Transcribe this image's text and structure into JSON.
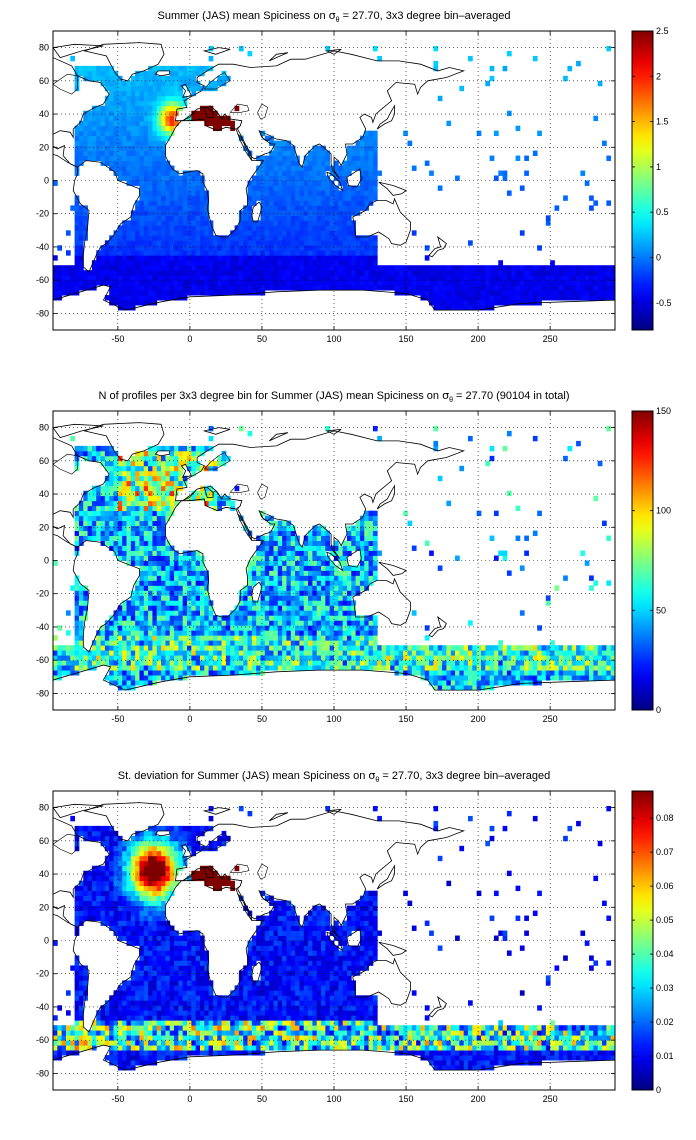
{
  "chart_data": [
    {
      "type": "heatmap",
      "title_pre": "Summer (JAS) mean Spiciness on ",
      "title_sym": "σ",
      "title_sub": "θ",
      "title_post": " = 27.70, 3x3 degree bin–averaged",
      "xlim": [
        -95,
        295
      ],
      "ylim": [
        -90,
        90
      ],
      "xticks": [
        "-50",
        "0",
        "50",
        "100",
        "150",
        "200",
        "250"
      ],
      "xtick_values": [
        -50,
        0,
        50,
        100,
        150,
        200,
        250
      ],
      "yticks": [
        "80",
        "60",
        "40",
        "20",
        "0",
        "-20",
        "-40",
        "-60",
        "-80"
      ],
      "ytick_values": [
        80,
        60,
        40,
        20,
        0,
        -20,
        -40,
        -60,
        -80
      ],
      "grid": true,
      "colormap": "jet",
      "colorbar": {
        "min": -0.8,
        "max": 2.5,
        "ticks": [
          "2.5",
          "2",
          "1.5",
          "1",
          "0.5",
          "0",
          "-0.5"
        ],
        "tick_values": [
          2.5,
          2,
          1.5,
          1,
          0.5,
          0,
          -0.5
        ]
      },
      "field": "mean"
    },
    {
      "type": "heatmap",
      "title_pre": "N of profiles per 3x3 degree bin for Summer (JAS) mean Spiciness on ",
      "title_sym": "σ",
      "title_sub": "θ",
      "title_post": " = 27.70 (90104 in total)",
      "xlim": [
        -95,
        295
      ],
      "ylim": [
        -90,
        90
      ],
      "xticks": [
        "-50",
        "0",
        "50",
        "100",
        "150",
        "200",
        "250"
      ],
      "xtick_values": [
        -50,
        0,
        50,
        100,
        150,
        200,
        250
      ],
      "yticks": [
        "80",
        "60",
        "40",
        "20",
        "0",
        "-20",
        "-40",
        "-60",
        "-80"
      ],
      "ytick_values": [
        80,
        60,
        40,
        20,
        0,
        -20,
        -40,
        -60,
        -80
      ],
      "grid": true,
      "colormap": "jet",
      "colorbar": {
        "min": 0,
        "max": 150,
        "ticks": [
          "150",
          "100",
          "50",
          "0"
        ],
        "tick_values": [
          150,
          100,
          50,
          0
        ]
      },
      "field": "count"
    },
    {
      "type": "heatmap",
      "title_pre": "St. deviation for Summer (JAS) mean Spiciness on ",
      "title_sym": "σ",
      "title_sub": "θ",
      "title_post": " = 27.70, 3x3 degree bin–averaged",
      "xlim": [
        -95,
        295
      ],
      "ylim": [
        -90,
        90
      ],
      "xticks": [
        "-50",
        "0",
        "50",
        "100",
        "150",
        "200",
        "250"
      ],
      "xtick_values": [
        -50,
        0,
        50,
        100,
        150,
        200,
        250
      ],
      "yticks": [
        "80",
        "60",
        "40",
        "20",
        "0",
        "-20",
        "-40",
        "-60",
        "-80"
      ],
      "ytick_values": [
        80,
        60,
        40,
        20,
        0,
        -20,
        -40,
        -60,
        -80
      ],
      "grid": true,
      "colormap": "jet",
      "colorbar": {
        "min": 0,
        "max": 0.088,
        "ticks": [
          "0.08",
          "0.07",
          "0.06",
          "0.05",
          "0.04",
          "0.03",
          "0.02",
          "0.01",
          "0"
        ],
        "tick_values": [
          0.08,
          0.07,
          0.06,
          0.05,
          0.04,
          0.03,
          0.02,
          0.01,
          0
        ]
      },
      "field": "std"
    }
  ]
}
